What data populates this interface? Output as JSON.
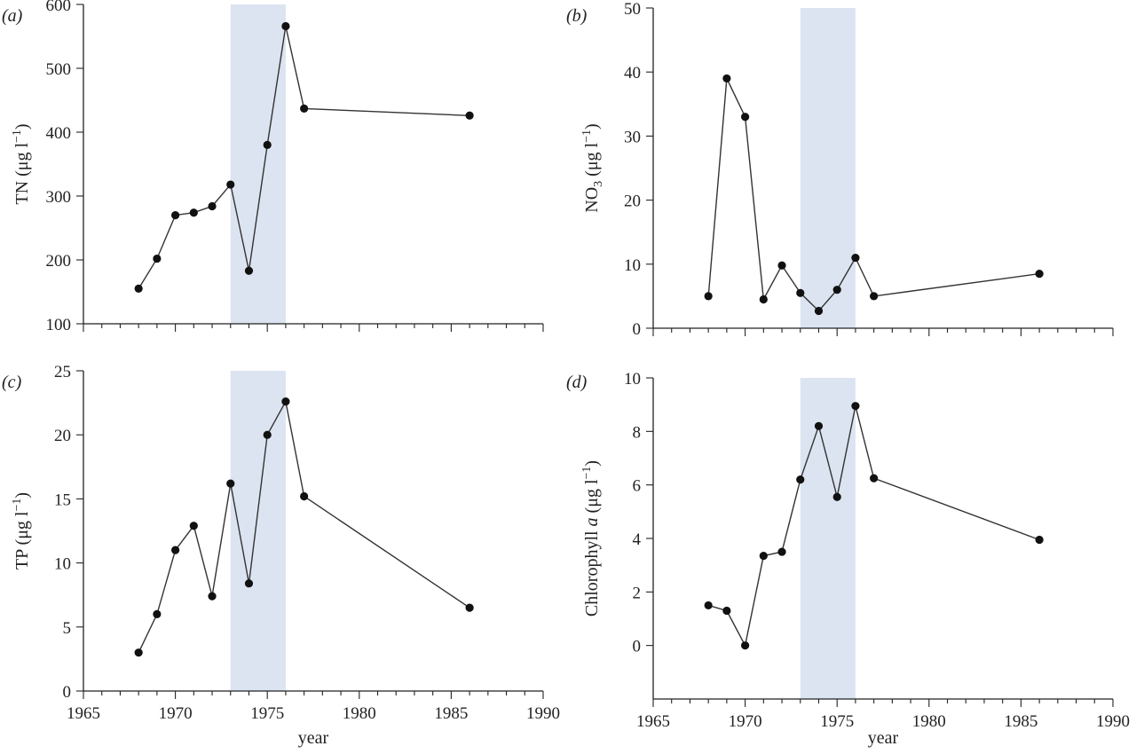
{
  "chart_data": [
    {
      "id": "a",
      "type": "line",
      "panel_label_open": "(",
      "panel_label_letter": "a",
      "panel_label_close": ")",
      "ylabel_main": "TN (μg l",
      "ylabel_sup": "−1",
      "ylabel_end": ")",
      "xlabel": "",
      "xlim": [
        1965,
        1990
      ],
      "ylim": [
        100,
        600
      ],
      "xticks": [
        1965,
        1970,
        1975,
        1980,
        1985,
        1990
      ],
      "yticks": [
        100,
        200,
        300,
        400,
        500,
        600
      ],
      "show_x_tick_labels": false,
      "shaded_period": [
        1973,
        1976
      ],
      "shade_color": "#dce4f2",
      "points": [
        {
          "x": 1968,
          "y": 155
        },
        {
          "x": 1969,
          "y": 202
        },
        {
          "x": 1970,
          "y": 270
        },
        {
          "x": 1971,
          "y": 274
        },
        {
          "x": 1972,
          "y": 284
        },
        {
          "x": 1973,
          "y": 318
        },
        {
          "x": 1974,
          "y": 183
        },
        {
          "x": 1975,
          "y": 380
        },
        {
          "x": 1976,
          "y": 566
        },
        {
          "x": 1977,
          "y": 437
        },
        {
          "x": 1986,
          "y": 426
        }
      ]
    },
    {
      "id": "b",
      "type": "line",
      "panel_label_open": "(",
      "panel_label_letter": "b",
      "panel_label_close": ")",
      "ylabel_main": "NO",
      "ylabel_sub": "3",
      "ylabel_mid": " (μg l",
      "ylabel_sup": "−1",
      "ylabel_end": ")",
      "xlabel": "",
      "xlim": [
        1965,
        1990
      ],
      "ylim": [
        0,
        50
      ],
      "xticks": [
        1965,
        1970,
        1975,
        1980,
        1985,
        1990
      ],
      "yticks": [
        0,
        10,
        20,
        30,
        40,
        50
      ],
      "show_x_tick_labels": false,
      "shaded_period": [
        1973,
        1976
      ],
      "shade_color": "#dce4f2",
      "points": [
        {
          "x": 1968,
          "y": 5
        },
        {
          "x": 1969,
          "y": 39
        },
        {
          "x": 1970,
          "y": 33
        },
        {
          "x": 1971,
          "y": 4.5
        },
        {
          "x": 1972,
          "y": 9.8
        },
        {
          "x": 1973,
          "y": 5.5
        },
        {
          "x": 1974,
          "y": 2.7
        },
        {
          "x": 1975,
          "y": 6
        },
        {
          "x": 1976,
          "y": 11
        },
        {
          "x": 1977,
          "y": 5
        },
        {
          "x": 1986,
          "y": 8.5
        }
      ]
    },
    {
      "id": "c",
      "type": "line",
      "panel_label_open": "(",
      "panel_label_letter": "c",
      "panel_label_close": ")",
      "ylabel_main": "TP (μg l",
      "ylabel_sup": "−1",
      "ylabel_end": ")",
      "xlabel": "year",
      "xlim": [
        1965,
        1990
      ],
      "ylim": [
        0,
        25
      ],
      "xticks": [
        1965,
        1970,
        1975,
        1980,
        1985,
        1990
      ],
      "yticks": [
        0,
        5,
        10,
        15,
        20,
        25
      ],
      "show_x_tick_labels": true,
      "shaded_period": [
        1973,
        1976
      ],
      "shade_color": "#dce4f2",
      "points": [
        {
          "x": 1968,
          "y": 3
        },
        {
          "x": 1969,
          "y": 6
        },
        {
          "x": 1970,
          "y": 11
        },
        {
          "x": 1971,
          "y": 12.9
        },
        {
          "x": 1972,
          "y": 7.4
        },
        {
          "x": 1973,
          "y": 16.2
        },
        {
          "x": 1974,
          "y": 8.4
        },
        {
          "x": 1975,
          "y": 20
        },
        {
          "x": 1976,
          "y": 22.6
        },
        {
          "x": 1977,
          "y": 15.2
        },
        {
          "x": 1986,
          "y": 6.5
        }
      ]
    },
    {
      "id": "d",
      "type": "line",
      "panel_label_open": "(",
      "panel_label_letter": "d",
      "panel_label_close": ")",
      "ylabel_main": "Chlorophyll ",
      "ylabel_ital": "a",
      "ylabel_mid": " (μg l",
      "ylabel_sup": "−1",
      "ylabel_end": ")",
      "xlabel": "year",
      "xlim": [
        1965,
        1990
      ],
      "ylim": [
        -2,
        10
      ],
      "xticks": [
        1965,
        1970,
        1975,
        1980,
        1985,
        1990
      ],
      "yticks": [
        0,
        2,
        4,
        6,
        8,
        10
      ],
      "show_x_tick_labels": true,
      "shaded_period": [
        1973,
        1976
      ],
      "shade_color": "#dce4f2",
      "points": [
        {
          "x": 1968,
          "y": 1.5
        },
        {
          "x": 1969,
          "y": 1.3
        },
        {
          "x": 1970,
          "y": 0
        },
        {
          "x": 1971,
          "y": 3.35
        },
        {
          "x": 1972,
          "y": 3.5
        },
        {
          "x": 1973,
          "y": 6.2
        },
        {
          "x": 1974,
          "y": 8.2
        },
        {
          "x": 1975,
          "y": 5.55
        },
        {
          "x": 1976,
          "y": 8.95
        },
        {
          "x": 1977,
          "y": 6.25
        },
        {
          "x": 1986,
          "y": 3.95
        }
      ]
    }
  ]
}
